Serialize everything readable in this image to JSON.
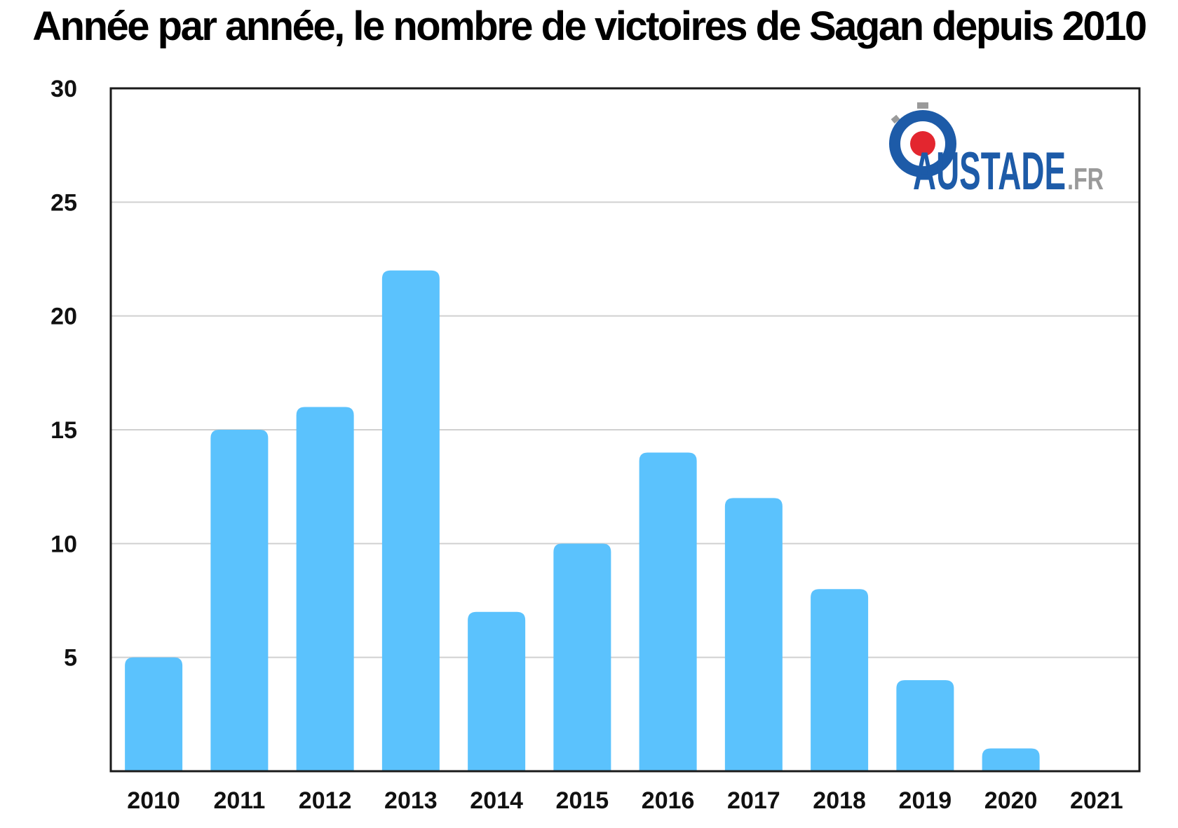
{
  "colors": {
    "bar": "#5bc2fd",
    "grid": "#d0d0d0",
    "axis": "#1a1a1a",
    "logo_blue": "#1d5ba8",
    "logo_red": "#e3262f",
    "logo_gray": "#9a9a9a"
  },
  "logo": {
    "main": "AUSTADE",
    "suffix": ".FR"
  },
  "chart_data": {
    "type": "bar",
    "title": "Année par année, le nombre de victoires de Sagan depuis 2010",
    "xlabel": "",
    "ylabel": "",
    "categories": [
      "2010",
      "2011",
      "2012",
      "2013",
      "2014",
      "2015",
      "2016",
      "2017",
      "2018",
      "2019",
      "2020",
      "2021"
    ],
    "values": [
      5,
      15,
      16,
      22,
      7,
      10,
      14,
      12,
      8,
      4,
      1,
      0
    ],
    "ylim": [
      0,
      30
    ],
    "yticks": [
      "5",
      "10",
      "15",
      "20",
      "25",
      "30"
    ],
    "grid": true,
    "legend": "none"
  }
}
